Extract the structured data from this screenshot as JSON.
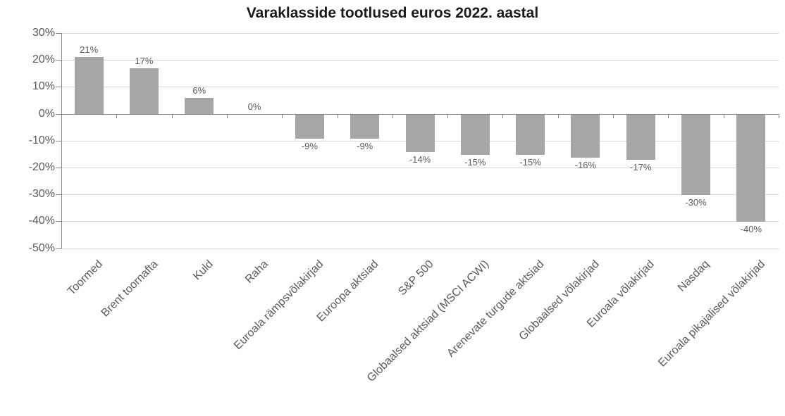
{
  "chart_data": {
    "type": "bar",
    "title": "Varaklasside tootlused euros 2022. aastal",
    "categories": [
      "Toormed",
      "Brent toornafta",
      "Kuld",
      "Raha",
      "Euroala rämpsvõlakirjad",
      "Euroopa aktsiad",
      "S&P 500",
      "Globaalsed aktsiad (MSCI ACWI)",
      "Arenevate turgude aktsiad",
      "Globaalsed võlakirjad",
      "Euroala võlakirjad",
      "Nasdaq",
      "Euroala pikajalised võlakirjad"
    ],
    "values": [
      21,
      17,
      6,
      0,
      -9,
      -9,
      -14,
      -15,
      -15,
      -16,
      -17,
      -30,
      -40
    ],
    "value_labels": [
      "21%",
      "17%",
      "6%",
      "0%",
      "-9%",
      "-9%",
      "-14%",
      "-15%",
      "-15%",
      "-16%",
      "-17%",
      "-30%",
      "-40%"
    ],
    "y_axis": {
      "ticks": [
        "30%",
        "20%",
        "10%",
        "0%",
        "-10%",
        "-20%",
        "-30%",
        "-40%",
        "-50%"
      ],
      "max": 30,
      "min": -50,
      "step": 10
    },
    "xlabel": "",
    "ylabel": "",
    "grid": true,
    "legend_position": "none"
  },
  "colors": {
    "bar_fill": "#a6a6a6",
    "gridline": "#d9d9d9",
    "axis_line": "#868686",
    "tick_label": "#595959",
    "data_label": "#595959",
    "title_text": "#1a1a1a",
    "background": "#ffffff"
  }
}
